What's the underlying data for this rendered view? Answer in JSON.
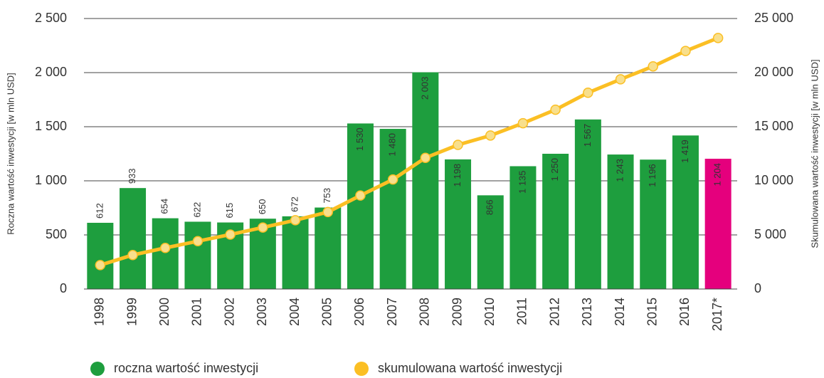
{
  "chart_data": {
    "type": "bar",
    "categories": [
      "1998",
      "1999",
      "2000",
      "2001",
      "2002",
      "2003",
      "2004",
      "2005",
      "2006",
      "2007",
      "2008",
      "2009",
      "2010",
      "2011",
      "2012",
      "2013",
      "2014",
      "2015",
      "2016",
      "2017*"
    ],
    "series": [
      {
        "name": "roczna wartość inwestycji",
        "type": "bar",
        "color": "#1e9e3e",
        "colors": [
          "#1e9e3e",
          "#1e9e3e",
          "#1e9e3e",
          "#1e9e3e",
          "#1e9e3e",
          "#1e9e3e",
          "#1e9e3e",
          "#1e9e3e",
          "#1e9e3e",
          "#1e9e3e",
          "#1e9e3e",
          "#1e9e3e",
          "#1e9e3e",
          "#1e9e3e",
          "#1e9e3e",
          "#1e9e3e",
          "#1e9e3e",
          "#1e9e3e",
          "#1e9e3e",
          "#e5007d"
        ],
        "values": [
          612,
          933,
          654,
          622,
          615,
          650,
          672,
          753,
          1530,
          1480,
          2003,
          1198,
          866,
          1135,
          1250,
          1567,
          1243,
          1196,
          1419,
          1204
        ],
        "value_labels": [
          "612",
          "933",
          "654",
          "622",
          "615",
          "650",
          "672",
          "753",
          "1 530",
          "1 480",
          "2 003",
          "1 198",
          "866",
          "1 135",
          "1 250",
          "1 567",
          "1 243",
          "1 196",
          "1 419",
          "1 204"
        ]
      },
      {
        "name": "skumulowana wartość inwestycji",
        "type": "line",
        "axis": "y2",
        "color": "#fbbf24",
        "marker_color": "#f8df8c",
        "values": [
          2212,
          3145,
          3799,
          4421,
          5036,
          5686,
          6358,
          7111,
          8641,
          10121,
          12124,
          13322,
          14188,
          15323,
          16573,
          18140,
          19383,
          20579,
          21998,
          23202
        ]
      }
    ],
    "y_label": "Roczna wartość inwestycji [w mln USD]",
    "y2_label": "Skumulowana wartość inwestycji [w mln USD]",
    "ylim": [
      0,
      2500
    ],
    "yticks": [
      0,
      500,
      {
        "value": 1000,
        "label": "1 000"
      },
      {
        "value": 1500,
        "label": "1 500"
      },
      {
        "value": 2000,
        "label": "2 000"
      },
      {
        "value": 2500,
        "label": "2 500"
      }
    ],
    "y2lim": [
      0,
      25000
    ],
    "y2ticks": [
      0,
      {
        "value": 5000,
        "label": "5 000"
      },
      {
        "value": 10000,
        "label": "10 000"
      },
      {
        "value": 15000,
        "label": "15 000"
      },
      {
        "value": 20000,
        "label": "20 000"
      },
      {
        "value": 25000,
        "label": "25 000"
      }
    ],
    "grid": true,
    "legend": "bottom"
  }
}
